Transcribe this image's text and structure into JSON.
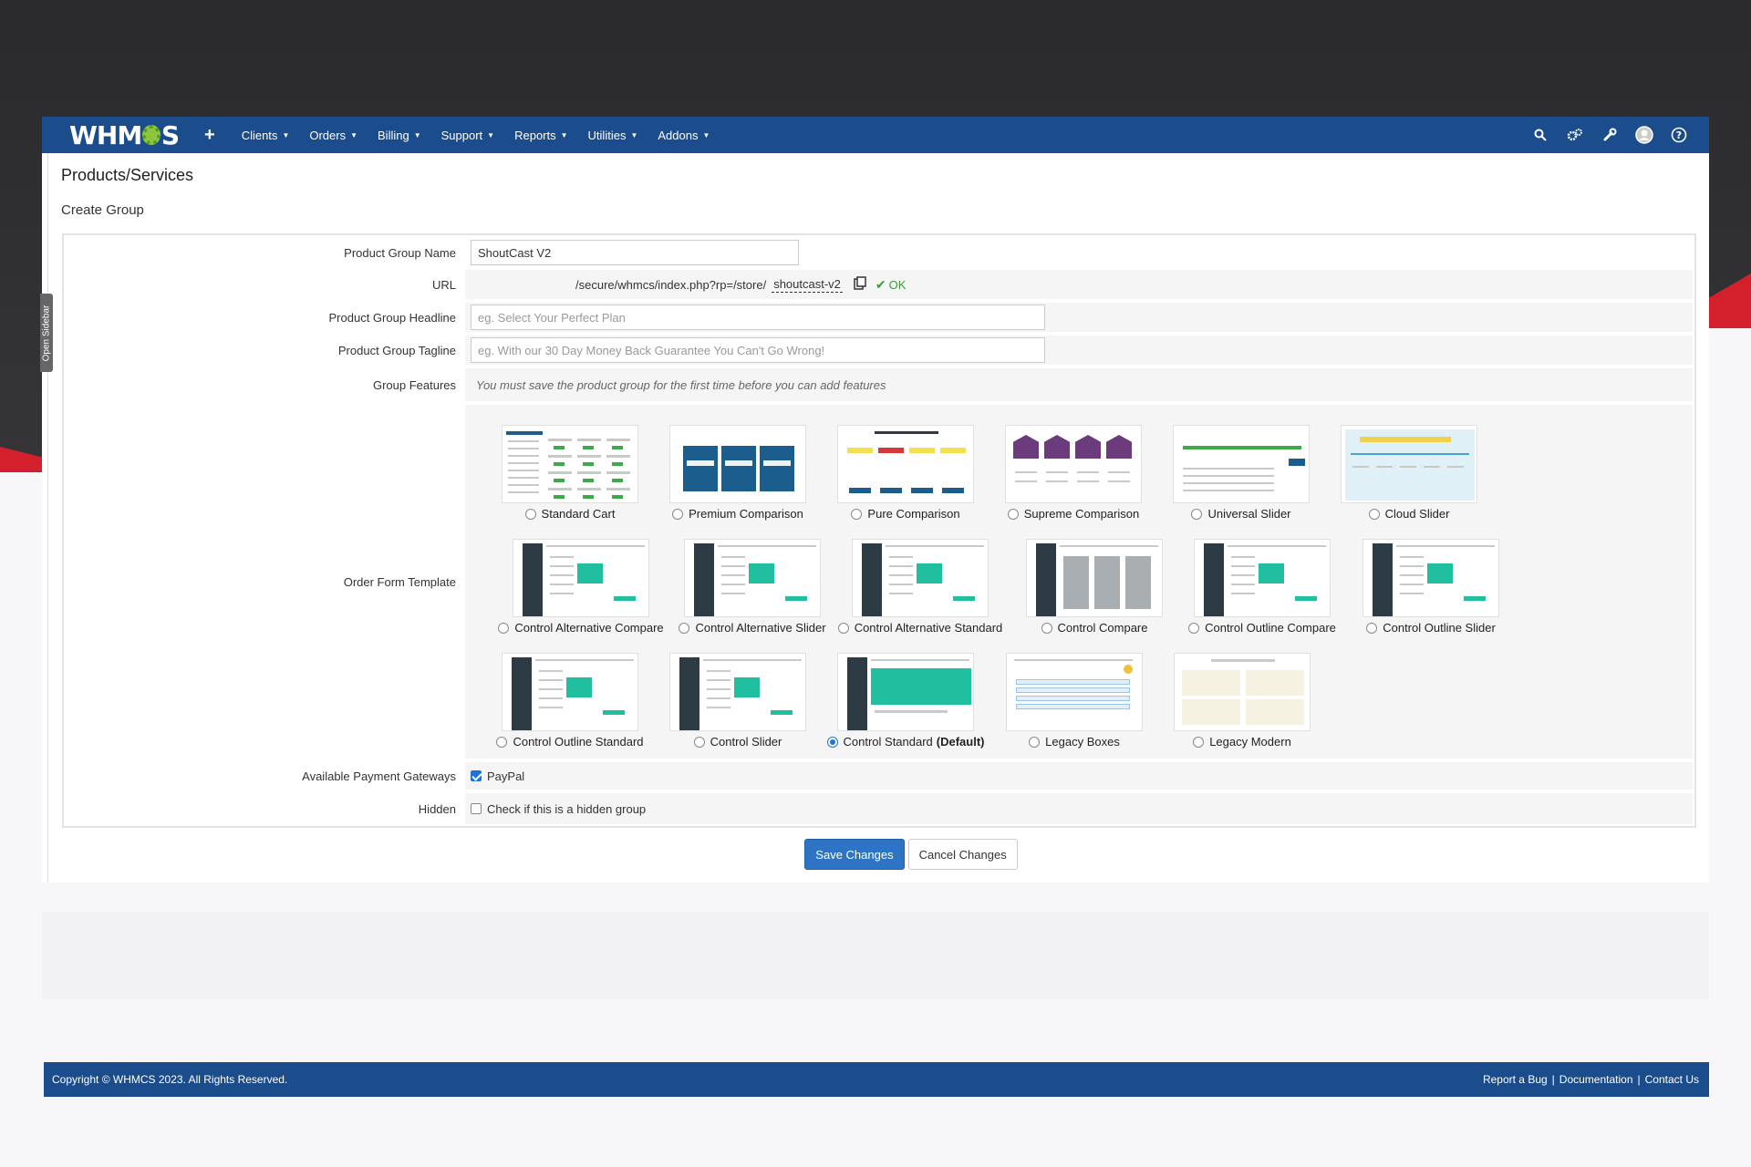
{
  "nav": {
    "logo": "WHMCS",
    "plus": "+",
    "menu": [
      {
        "label": "Clients"
      },
      {
        "label": "Orders"
      },
      {
        "label": "Billing"
      },
      {
        "label": "Support"
      },
      {
        "label": "Reports"
      },
      {
        "label": "Utilities"
      },
      {
        "label": "Addons"
      }
    ],
    "icons": [
      "search-icon",
      "gears-icon",
      "wrench-icon",
      "user-avatar-icon",
      "help-icon"
    ]
  },
  "sidebar_toggle": "Open Sidebar",
  "page": {
    "title": "Products/Services",
    "subtitle": "Create Group"
  },
  "form": {
    "group_name": {
      "label": "Product Group Name",
      "value": "ShoutCast V2"
    },
    "url": {
      "label": "URL",
      "path": "/secure/whmcs/index.php?rp=/store/",
      "slug": "shoutcast-v2",
      "status": "OK"
    },
    "headline": {
      "label": "Product Group Headline",
      "placeholder": "eg. Select Your Perfect Plan"
    },
    "tagline": {
      "label": "Product Group Tagline",
      "placeholder": "eg. With our 30 Day Money Back Guarantee You Can't Go Wrong!"
    },
    "features": {
      "label": "Group Features",
      "note": "You must save the product group for the first time before you can add features"
    },
    "order_form": {
      "label": "Order Form Template",
      "templates": [
        {
          "name": "Standard Cart",
          "style": "standard"
        },
        {
          "name": "Premium Comparison",
          "style": "premium"
        },
        {
          "name": "Pure Comparison",
          "style": "pure"
        },
        {
          "name": "Supreme Comparison",
          "style": "supreme"
        },
        {
          "name": "Universal Slider",
          "style": "universal"
        },
        {
          "name": "Cloud Slider",
          "style": "cloud"
        },
        {
          "name": "Control Alternative Compare",
          "style": "control"
        },
        {
          "name": "Control Alternative Slider",
          "style": "control"
        },
        {
          "name": "Control Alternative Standard",
          "style": "control"
        },
        {
          "name": "Control Compare",
          "style": "control-grey"
        },
        {
          "name": "Control Outline Compare",
          "style": "control"
        },
        {
          "name": "Control Outline Slider",
          "style": "control"
        },
        {
          "name": "Control Outline Standard",
          "style": "control"
        },
        {
          "name": "Control Slider",
          "style": "control"
        },
        {
          "name": "Control Standard",
          "suffix": "(Default)",
          "style": "control-teal"
        },
        {
          "name": "Legacy Boxes",
          "style": "legacy-boxes"
        },
        {
          "name": "Legacy Modern",
          "style": "legacy-modern"
        }
      ],
      "selected_index": 14
    },
    "gateways": {
      "label": "Available Payment Gateways",
      "option": "PayPal",
      "checked": true
    },
    "hidden": {
      "label": "Hidden",
      "option": "Check if this is a hidden group",
      "checked": false
    }
  },
  "buttons": {
    "save": "Save Changes",
    "cancel": "Cancel Changes"
  },
  "footer": {
    "copyright": "Copyright © WHMCS 2023. All Rights Reserved.",
    "links": [
      "Report a Bug",
      "Documentation",
      "Contact Us"
    ]
  },
  "colors": {
    "brand": "#1b4c8c",
    "primary_button": "#2d74c4",
    "ok_green": "#3c9b3c",
    "accent_red": "#d4202c"
  }
}
